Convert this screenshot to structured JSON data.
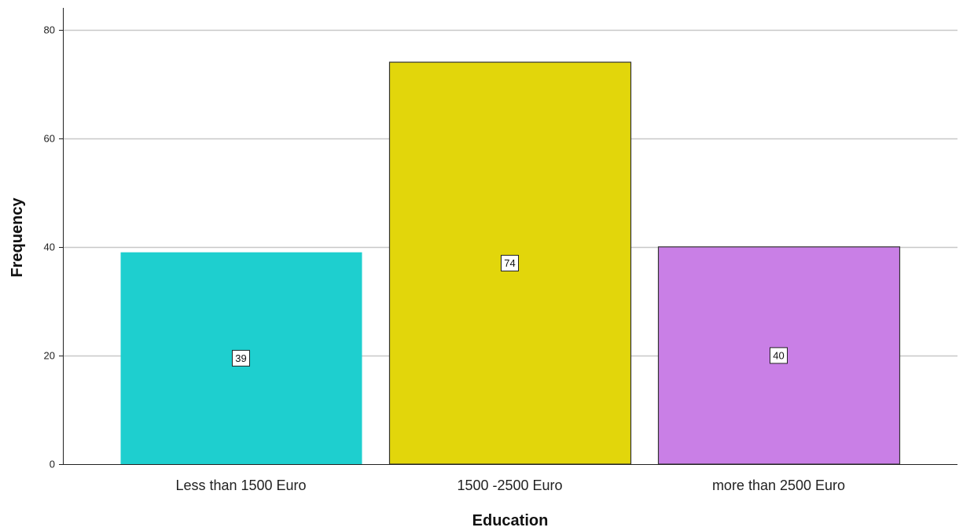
{
  "chart_data": {
    "type": "bar",
    "categories": [
      "Less than 1500 Euro",
      "1500 -2500 Euro",
      "more than 2500 Euro"
    ],
    "values": [
      39,
      74,
      40
    ],
    "data_labels": [
      "39",
      "74",
      "40"
    ],
    "colors": [
      "#1ecfcf",
      "#e2d60b",
      "#c97fe6"
    ],
    "xlabel": "Education",
    "ylabel": "Frequency",
    "ylim": [
      0,
      84
    ],
    "yticks": [
      0,
      20,
      40,
      60,
      80
    ],
    "ytick_labels": [
      "0",
      "20",
      "40",
      "60",
      "80"
    ],
    "grid": true
  }
}
